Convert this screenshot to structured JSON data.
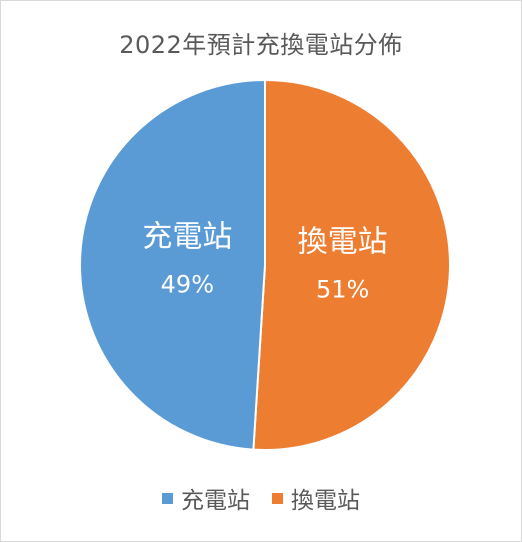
{
  "chart_data": {
    "type": "pie",
    "title": "2022年預計充換電站分佈",
    "categories": [
      "充電站",
      "換電站"
    ],
    "values": [
      49,
      51
    ],
    "value_labels": [
      "49%",
      "51%"
    ],
    "colors": [
      "#5b9bd5",
      "#ed7d31"
    ],
    "legend_position": "bottom"
  }
}
